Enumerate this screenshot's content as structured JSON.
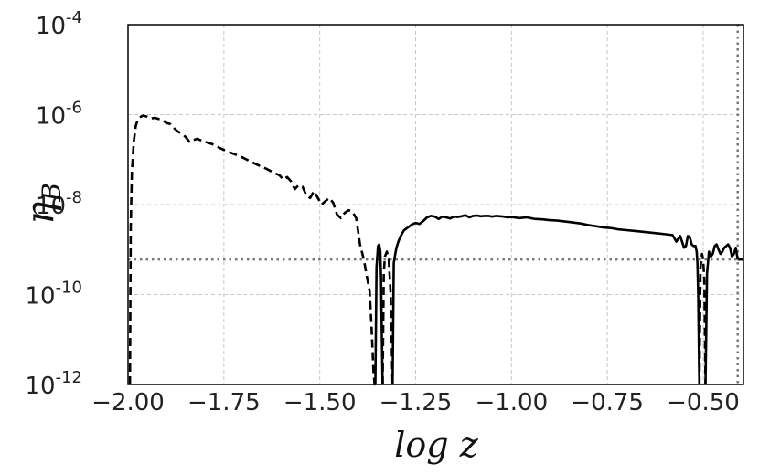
{
  "chart_data": {
    "type": "line",
    "title": "",
    "xlabel": "log z",
    "ylabel": "η_B",
    "ylabel_main": "η",
    "ylabel_sub": "B",
    "xscale": "linear",
    "yscale": "log",
    "xlim": [
      -2.0,
      -0.395
    ],
    "ylim": [
      1e-12,
      0.0001
    ],
    "grid": true,
    "x_ticks": [
      {
        "value": -2.0,
        "label": "−2.00"
      },
      {
        "value": -1.75,
        "label": "−1.75"
      },
      {
        "value": -1.5,
        "label": "−1.50"
      },
      {
        "value": -1.25,
        "label": "−1.25"
      },
      {
        "value": -1.0,
        "label": "−1.00"
      },
      {
        "value": -0.75,
        "label": "−0.75"
      },
      {
        "value": -0.5,
        "label": "−0.50"
      }
    ],
    "y_ticks": [
      {
        "value": 1e-12,
        "base": "10",
        "exp": "-12"
      },
      {
        "value": 1e-10,
        "base": "10",
        "exp": "-10"
      },
      {
        "value": 1e-08,
        "base": "10",
        "exp": "-8"
      },
      {
        "value": 1e-06,
        "base": "10",
        "exp": "-6"
      },
      {
        "value": 0.0001,
        "base": "10",
        "exp": "-4"
      }
    ],
    "reference_lines": {
      "horizontal_y": 6e-10,
      "vertical_x": -0.41,
      "style": "dotted",
      "color": "#777777"
    },
    "series": [
      {
        "line_style": "dashed",
        "color": "#000000",
        "x": [
          -1.995,
          -1.993,
          -1.99,
          -1.985,
          -1.98,
          -1.975,
          -1.97,
          -1.96,
          -1.95,
          -1.94,
          -1.93,
          -1.92,
          -1.91,
          -1.9,
          -1.89,
          -1.88,
          -1.87,
          -1.86,
          -1.85,
          -1.84,
          -1.83,
          -1.82,
          -1.8,
          -1.78,
          -1.76,
          -1.74,
          -1.72,
          -1.7,
          -1.68,
          -1.66,
          -1.64,
          -1.62,
          -1.605,
          -1.595,
          -1.585,
          -1.575,
          -1.565,
          -1.555,
          -1.545,
          -1.535,
          -1.525,
          -1.515,
          -1.505,
          -1.495,
          -1.485,
          -1.475,
          -1.465,
          -1.455,
          -1.445,
          -1.435,
          -1.425,
          -1.415,
          -1.405,
          -1.395,
          -1.385,
          -1.375,
          -1.37,
          -1.365,
          -1.36,
          -1.357,
          -1.355
        ],
        "y": [
          1e-12,
          3e-09,
          5e-08,
          2.5e-07,
          5.5e-07,
          7.6e-07,
          8.7e-07,
          9.5e-07,
          9e-07,
          8.2e-07,
          8.5e-07,
          8e-07,
          7.7e-07,
          6.5e-07,
          6.2e-07,
          5e-07,
          4.2e-07,
          3.8e-07,
          3.2e-07,
          2.5e-07,
          2.7e-07,
          2.9e-07,
          2.5e-07,
          2.2e-07,
          1.8e-07,
          1.5e-07,
          1.3e-07,
          1.1e-07,
          9e-08,
          7.5e-08,
          6.3e-08,
          5.1e-08,
          4.5e-08,
          3.6e-08,
          4.1e-08,
          3.3e-08,
          2.2e-08,
          2.7e-08,
          2.5e-08,
          1.6e-08,
          1.4e-08,
          2e-08,
          1.4e-08,
          1e-08,
          1.2e-08,
          1.4e-08,
          1.1e-08,
          6e-09,
          5e-09,
          6.5e-09,
          7.5e-09,
          7e-09,
          5e-09,
          1.3e-09,
          6e-10,
          2e-10,
          1.2e-10,
          2e-11,
          2e-12,
          1e-12,
          1e-12
        ]
      },
      {
        "line_style": "solid",
        "color": "#000000",
        "x": [
          -1.355,
          -1.352,
          -1.348,
          -1.345,
          -1.342,
          -1.34,
          -1.338,
          -1.336
        ],
        "y": [
          1e-12,
          4e-10,
          1.2e-09,
          1.3e-09,
          9e-10,
          2e-10,
          1e-11,
          1e-12
        ]
      },
      {
        "line_style": "dashed",
        "color": "#000000",
        "x": [
          -1.336,
          -1.333,
          -1.33,
          -1.325,
          -1.32,
          -1.315,
          -1.31
        ],
        "y": [
          1e-12,
          3e-10,
          7e-10,
          9e-10,
          6e-10,
          1e-10,
          1e-12
        ]
      },
      {
        "line_style": "solid",
        "color": "#000000",
        "x": [
          -1.31,
          -1.307,
          -1.303,
          -1.3,
          -1.295,
          -1.29,
          -1.285,
          -1.28,
          -1.27,
          -1.26,
          -1.25,
          -1.24,
          -1.23,
          -1.22,
          -1.21,
          -1.2,
          -1.19,
          -1.18,
          -1.17,
          -1.16,
          -1.15,
          -1.14,
          -1.13,
          -1.12,
          -1.11,
          -1.1,
          -1.09,
          -1.08,
          -1.07,
          -1.06,
          -1.05,
          -1.04,
          -1.03,
          -1.02,
          -1.01,
          -1.0,
          -0.98,
          -0.96,
          -0.94,
          -0.92,
          -0.9,
          -0.88,
          -0.86,
          -0.84,
          -0.82,
          -0.8,
          -0.78,
          -0.76,
          -0.74,
          -0.72,
          -0.7,
          -0.68,
          -0.66,
          -0.64,
          -0.62,
          -0.6,
          -0.58,
          -0.57,
          -0.56,
          -0.55,
          -0.545,
          -0.54,
          -0.535,
          -0.53,
          -0.525,
          -0.52,
          -0.517,
          -0.515,
          -0.513,
          -0.51
        ],
        "y": [
          1e-12,
          5e-10,
          8e-10,
          1.1e-09,
          1.5e-09,
          1.9e-09,
          2.3e-09,
          2.7e-09,
          3.1e-09,
          3.6e-09,
          3.9e-09,
          3.7e-09,
          4.3e-09,
          5.2e-09,
          5.6e-09,
          5.4e-09,
          4.8e-09,
          5.4e-09,
          5.2e-09,
          4.9e-09,
          5.4e-09,
          5.3e-09,
          5.5e-09,
          5.8e-09,
          5.2e-09,
          5.6e-09,
          5.7e-09,
          5.5e-09,
          5.6e-09,
          5.6e-09,
          5.4e-09,
          5.6e-09,
          5.5e-09,
          5.4e-09,
          5.2e-09,
          5.3e-09,
          5e-09,
          5.2e-09,
          4.8e-09,
          4.7e-09,
          4.5e-09,
          4.4e-09,
          4.2e-09,
          4e-09,
          3.8e-09,
          3.5e-09,
          3.3e-09,
          3.1e-09,
          3e-09,
          2.8e-09,
          2.7e-09,
          2.6e-09,
          2.5e-09,
          2.4e-09,
          2.3e-09,
          2.2e-09,
          2.1e-09,
          1.5e-09,
          2e-09,
          1.1e-09,
          1.2e-09,
          2e-09,
          1.9e-09,
          1.3e-09,
          1.2e-09,
          1.2e-09,
          9e-10,
          5e-10,
          1e-10,
          1e-12
        ]
      },
      {
        "line_style": "dashed",
        "color": "#000000",
        "x": [
          -0.51,
          -0.507,
          -0.503,
          -0.5,
          -0.497,
          -0.494
        ],
        "y": [
          1e-12,
          4e-10,
          8e-10,
          6e-10,
          2e-10,
          1e-12
        ]
      },
      {
        "line_style": "solid",
        "color": "#000000",
        "x": [
          -0.494,
          -0.49,
          -0.485,
          -0.48,
          -0.475,
          -0.47,
          -0.465,
          -0.46,
          -0.455,
          -0.45,
          -0.445,
          -0.44,
          -0.435,
          -0.43,
          -0.425,
          -0.42,
          -0.415,
          -0.41
        ],
        "y": [
          1e-12,
          3e-10,
          9e-10,
          7e-10,
          8e-10,
          1.2e-09,
          1.3e-09,
          1e-09,
          8e-10,
          9e-10,
          1.1e-09,
          1.2e-09,
          1.3e-09,
          1.1e-09,
          7e-10,
          8e-10,
          1.1e-09,
          6e-10
        ]
      },
      {
        "line_style": "solid",
        "color": "#000000",
        "x": [
          -0.41,
          -0.395
        ],
        "y": [
          6e-10,
          6e-10
        ]
      }
    ]
  }
}
